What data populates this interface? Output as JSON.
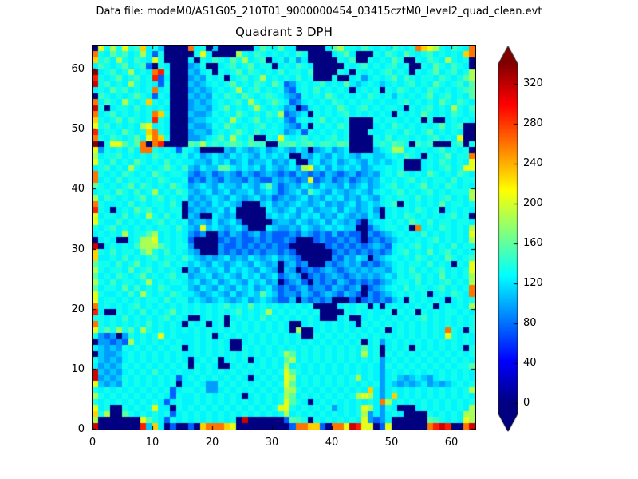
{
  "header": {
    "data_file_label": "Data file: modeM0/AS1G05_210T01_9000000454_03415cztM0_level2_quad_clean.evt"
  },
  "chart_data": {
    "type": "heatmap",
    "title": "Quadrant 3 DPH",
    "xlabel": "",
    "ylabel": "",
    "xlim": [
      0,
      64
    ],
    "ylim": [
      0,
      64
    ],
    "x_ticks": [
      0,
      10,
      20,
      30,
      40,
      50,
      60
    ],
    "y_ticks": [
      0,
      10,
      20,
      30,
      40,
      50,
      60
    ],
    "grid": false,
    "legend": "none",
    "colormap": "jet",
    "colorbar": {
      "position": "right",
      "extend": "both",
      "ticks": [
        0,
        40,
        80,
        120,
        160,
        200,
        240,
        280,
        320
      ],
      "vmin": 0,
      "vmax": 342
    },
    "colors": {
      "background": "#ffffff",
      "text": "#000000",
      "spine": "#000000"
    },
    "description": "64x64 detector plane histogram (counts per pixel); mostly cyan ~120-150 counts, dead navy pixels/patches at 0, hot orange/red pixels ~240-340 along left edge, bottom row and module seams",
    "value_encoding": {
      "0": 0,
      "1": 45,
      "2": 75,
      "3": 95,
      "4": 110,
      "5": 125,
      "6": 135,
      "7": 148,
      "8": 158,
      "9": 185,
      "a": 205,
      "b": 230,
      "c": 260,
      "d": 290,
      "e": 315,
      "f": 340
    },
    "matrix_rows_top_to_bottom": true,
    "first_row_y": 63,
    "matrix": [
      "0a696a67b5640000c5604000000586585500000589665765657656cba965765c",
      "c65867569526000006a50000965765656576000056850006576586567565​65bc",
      "b675965765a600005065765869567056463500000657006565860065765​96560",
      "5765685672065000346005675685660565765000006567565675600658657650",
      "f567569565cd600043560656857656575665700006506565675650656856​7569",
      "d656856756d250003436560567569565657560006005635656857656657656​89",
      "e675659656526000434565685657658623565675658545654565675658656758",
      "5658675656c560003434565695675656325657565650565606576565765656​78",
      "07656568652650004343657658656765432656586565657656465656856756​58",
      "c57659656b6560003434565675965686523565657656566565567565658657​65",
      "e6056657565650003443568565696565340256565865675656650656756596​57",
      "c567565656cb600043346565865657692345065656756565650656586565​7656",
      "b656857656d650003445565965685656325656856560000656656560600565​65",
      "a67565659a5650004334658656567565432506565760000565765656568567​00",
      "d56658656bc650003443565686575665345265656560006556657656856565​00",
      "c65765685acb6000334568596570065a65675656756000065756656567565a00",
      "f06aa868c0cd00008796767876877007786786776870000676876076700067​06",
      "a3656575cc6565265400004354345345435403453450000456995656567565​60",
      "956675656576565645345435454354545004354354543554456576506568566c",
      "a65756586565756554435453453445343500453453454354545600056576565a",
      "567565965656865743544885454535434539a4535454534556560005656756aa",
      "c65657656586566532342343243234323243232432342343565765658656​5765",
      "c565756656576556232432433243224343​23a234234234346565675656657566",
      "865656857656586534543544354358423435435443534534567565685657​6565",
      "56658657569565764345345344534542345385435434543565675656756566​69",
      "9576565685675656343454354345342343453435453435435656657565675659",
      "c65565756566575043435454300045343454345343453454567065656585​6656",
      "d65056586756566034344535000005434534534453543453056565765605​6565",
      "a56657565965756043005434000004545435453435434354056576565656​7560",
      "a65575656567565634435345300000344354345354342045565658657566​5665",
      "656756565656657543a45434530005433435434545440024566560c56576565​9",
      "565659566895656532300324323423222324323242322032345656575656565a",
      "0565005699a565652000023232232322320002322323202323456565675656​59",
      "e05656579998656630000322323232322000000232323234325656756565​7566",
      "b65756658965756543000323232323323200000023232323235675658567​5656",
      "b55657565675665754343453435434534320000032435403456565765658​6567",
      "86657568565675654543543454354340342300032343423234565665756506​5a",
      "9656658567565650435445354543543043023234323434344356575656756​56a",
      "8565765685656756344534543545345234302323432343434546567565856569",
      "9657566569565665453453454354534023420323243232323456657565675659",
      "8566585756576556435435435453453232342332432340234565756656756​56c",
      "a65565759656576554345435345485423324323432432032345656560565765c",
      "a56656565665756645434543453454322403232300020232324506565650​5656",
      "c565656756565656565656756585656565656000056566050565656560565659",
      "d50065657565685656565656756569565656560000656565560656065656​6565",
      "66565756565675650056560565657565656565000560056565656567565656​56",
      "c656565657565650656056065656565650056565656506565656565656565656",
      "a68696859656565656565656565656565090056565656565605656565​65c6506",
      "63230365656a56555656056565656565656006565656565656565656565a6565",
      "0332329565656565565656500565656565656565656560563565656565656565",
      "5434365656565660565656500656565656565656565658560565606565656506",
      "0433456565656565565656565656565698565656565659560656565656565656",
      "6434356565656565056560565605656589565656565656563565656565656565",
      "5343465656565656065650056565656595656565656565653656565656565668",
      "e4343565657565655656565656565656a8656565656565653565656565656565",
      "e34346565656562565656565650565​65a9565656565695653564345435656565",
      "a434365656565605565336565656565​6a8565656565656563543434534345656",
      "656565656565625665633565656565659965656565656​5b53565656565656569",
      "96565656565652655656565650565656985656565656​9a9535b5656565656565",
      "65656565656525655656565656565656a865056565656565c956565656565656",
      "a560065656a55065656565656565656aa6565656356​56a953650005656565659",
      "b69008656565625656565656565656569565656565656935356500006565​6599",
      "90000000a8652656565656560e0000002876065656565a3235000000876565a9",
      "e0000000d4b5020020bcccba0000000002ccbb20ccaedaa02a000000cded00ce"
    ]
  }
}
